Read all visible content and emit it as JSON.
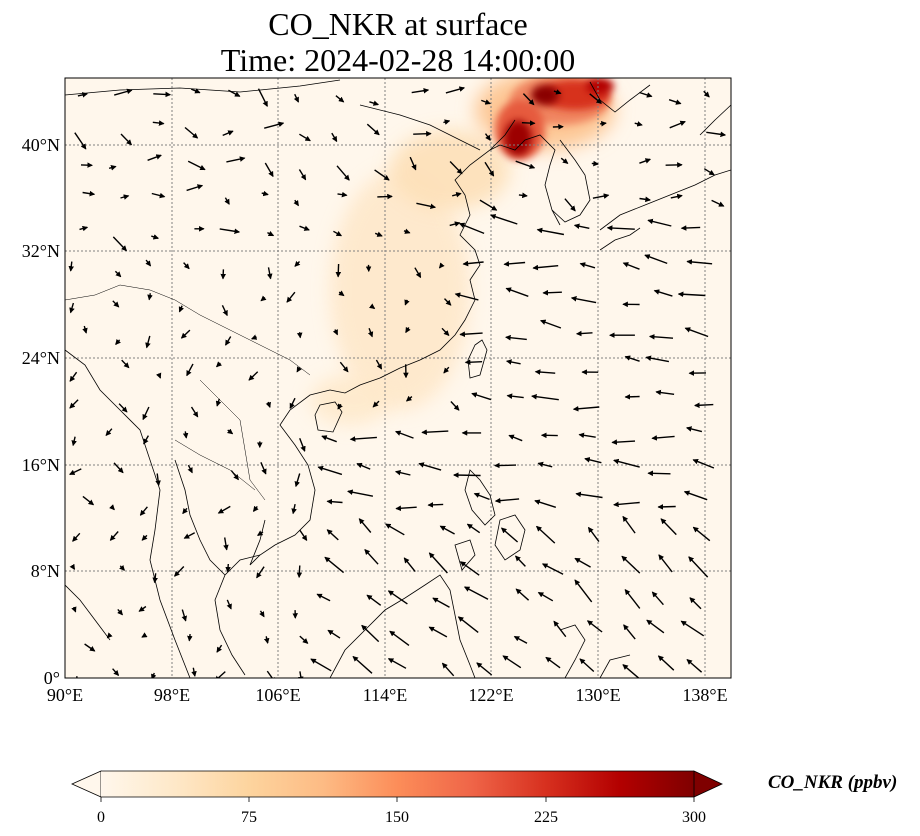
{
  "title": {
    "line1": "CO_NKR at surface",
    "line2": "Time: 2024-02-28 14:00:00"
  },
  "map": {
    "lon_ticks": [
      "90°E",
      "98°E",
      "106°E",
      "114°E",
      "122°E",
      "130°E",
      "138°E"
    ],
    "lat_ticks": [
      "0°",
      "8°N",
      "16°N",
      "24°N",
      "32°N",
      "40°N"
    ],
    "lon_range": [
      90,
      140
    ],
    "lat_range": [
      0,
      45
    ]
  },
  "colorbar": {
    "label": "CO_NKR (ppbv)",
    "ticks": [
      "0",
      "75",
      "150",
      "225",
      "300"
    ],
    "range": [
      0,
      300
    ],
    "colormap": "OrRd",
    "colors": [
      "#fff7ec",
      "#fee8c8",
      "#fdd49e",
      "#fdbb84",
      "#fc8d59",
      "#ef6548",
      "#d7301f",
      "#b30000",
      "#7f0000"
    ]
  }
}
